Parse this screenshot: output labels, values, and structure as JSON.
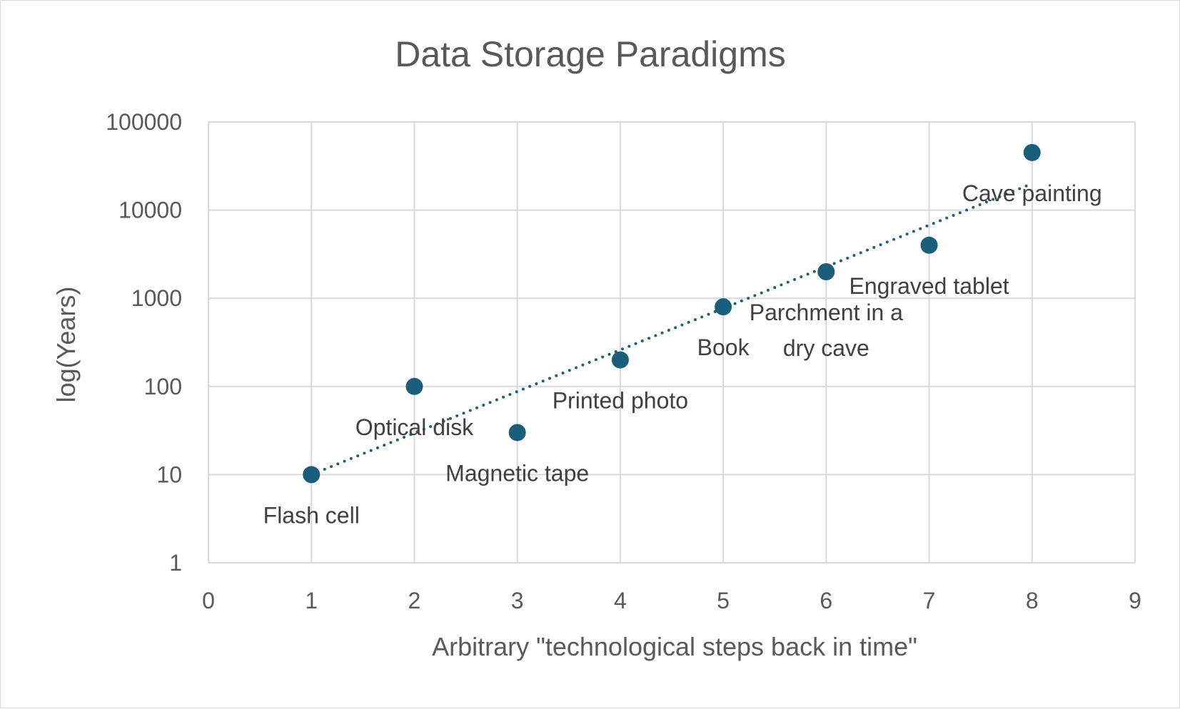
{
  "chart_data": {
    "type": "scatter",
    "title": "Data Storage Paradigms",
    "xlabel": "Arbitrary \"technological steps back in time\"",
    "ylabel": "log(Years)",
    "xlim": [
      0,
      9
    ],
    "ylim": [
      1,
      100000
    ],
    "y_scale": "log",
    "x_ticks": [
      "0",
      "1",
      "2",
      "3",
      "4",
      "5",
      "6",
      "7",
      "8",
      "9"
    ],
    "y_ticks": [
      "1",
      "10",
      "100",
      "1000",
      "10000",
      "100000"
    ],
    "grid": true,
    "legend": "none",
    "marker_color": "#1a5e7e",
    "trendline": {
      "type": "exponential",
      "style": "dotted",
      "color": "#1a5e7e",
      "from": [
        1,
        10
      ],
      "to": [
        8,
        20000
      ]
    },
    "points": [
      {
        "x": 1,
        "y": 10,
        "label": [
          "Flash cell"
        ]
      },
      {
        "x": 2,
        "y": 100,
        "label": [
          "Optical disk"
        ]
      },
      {
        "x": 3,
        "y": 30,
        "label": [
          "Magnetic tape"
        ]
      },
      {
        "x": 4,
        "y": 200,
        "label": [
          "Printed photo"
        ]
      },
      {
        "x": 5,
        "y": 800,
        "label": [
          "Book"
        ]
      },
      {
        "x": 6,
        "y": 2000,
        "label": [
          "Parchment in a",
          "dry cave"
        ]
      },
      {
        "x": 7,
        "y": 4000,
        "label": [
          "Engraved tablet"
        ]
      },
      {
        "x": 8,
        "y": 45000,
        "label": [
          "Cave painting"
        ]
      }
    ]
  }
}
